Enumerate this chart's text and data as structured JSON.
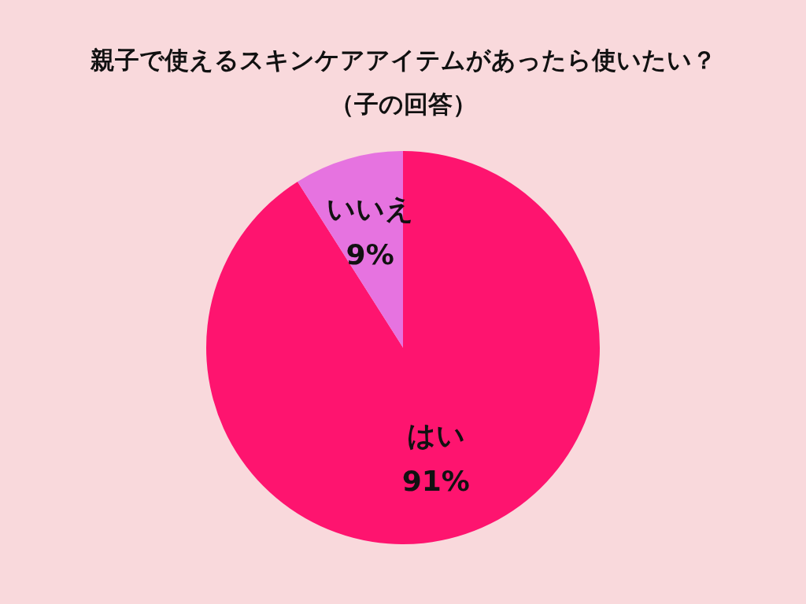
{
  "chart_data": {
    "type": "pie",
    "title": "親子で使えるスキンケアアイテムがあったら使いたい？",
    "subtitle": "（子の回答）",
    "categories": [
      "はい",
      "いいえ"
    ],
    "values": [
      91,
      9
    ],
    "colors": [
      "#fe146f",
      "#e673e0"
    ],
    "value_labels": [
      "91%",
      "9%"
    ],
    "legend": false
  }
}
